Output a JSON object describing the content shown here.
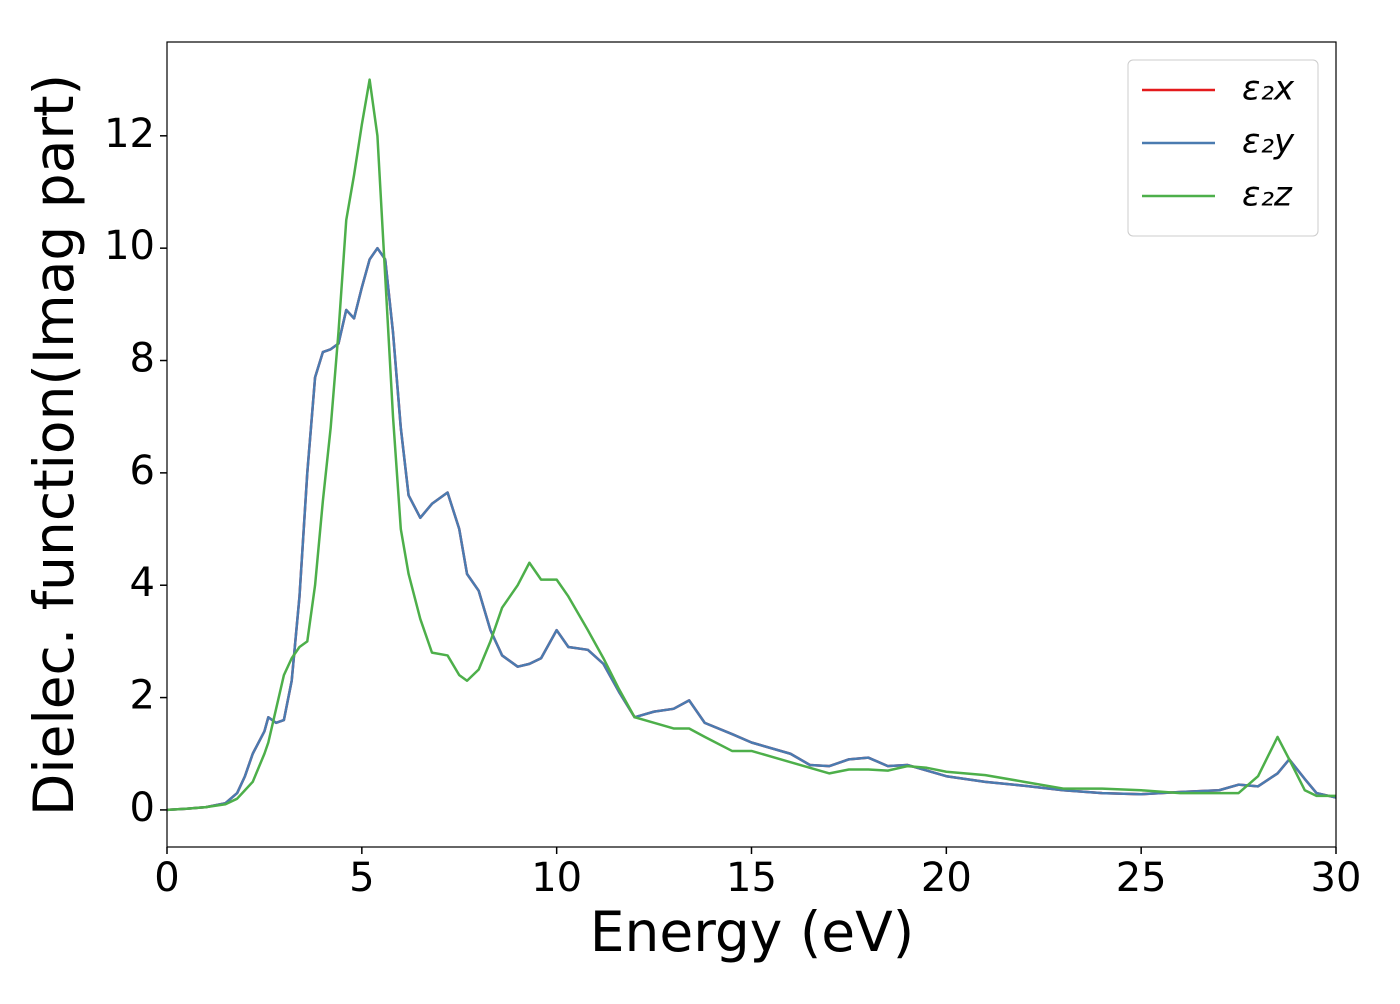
{
  "chart_data": {
    "type": "line",
    "xlabel": "Energy (eV)",
    "ylabel": "Dielec. function(Imag part)",
    "x": [
      0,
      0.5,
      1,
      1.5,
      1.8,
      2,
      2.2,
      2.5,
      2.6,
      2.8,
      3.0,
      3.2,
      3.4,
      3.6,
      3.8,
      4.0,
      4.2,
      4.4,
      4.6,
      4.8,
      5.0,
      5.2,
      5.4,
      5.6,
      5.8,
      6.0,
      6.2,
      6.5,
      6.8,
      7.2,
      7.5,
      7.7,
      8.0,
      8.3,
      8.6,
      9.0,
      9.3,
      9.6,
      10.0,
      10.3,
      10.8,
      11.2,
      11.6,
      12,
      12.5,
      13,
      13.4,
      13.8,
      14.5,
      15,
      16,
      16.5,
      17,
      17.5,
      18,
      18.5,
      19,
      19.5,
      20,
      21,
      22,
      23,
      24,
      25,
      26,
      27,
      27.5,
      28,
      28.5,
      28.8,
      29.2,
      29.5,
      30
    ],
    "series": [
      {
        "name": "ε₂x",
        "color": "#e41a1c",
        "values": [
          0,
          0.02,
          0.05,
          0.12,
          0.3,
          0.6,
          1.0,
          1.4,
          1.65,
          1.55,
          1.6,
          2.3,
          3.8,
          6.0,
          7.7,
          8.15,
          8.2,
          8.3,
          8.9,
          8.75,
          9.3,
          9.8,
          10.0,
          9.8,
          8.5,
          6.8,
          5.6,
          5.2,
          5.45,
          5.65,
          5.0,
          4.2,
          3.9,
          3.2,
          2.75,
          2.55,
          2.6,
          2.7,
          3.2,
          2.9,
          2.85,
          2.6,
          2.1,
          1.65,
          1.75,
          1.8,
          1.95,
          1.55,
          1.35,
          1.2,
          1.0,
          0.8,
          0.78,
          0.9,
          0.93,
          0.78,
          0.8,
          0.7,
          0.6,
          0.5,
          0.43,
          0.35,
          0.3,
          0.28,
          0.32,
          0.35,
          0.45,
          0.42,
          0.65,
          0.9,
          0.55,
          0.3,
          0.22
        ]
      },
      {
        "name": "ε₂y",
        "color": "#4a7bb0",
        "values": [
          0,
          0.02,
          0.05,
          0.12,
          0.3,
          0.6,
          1.0,
          1.4,
          1.65,
          1.55,
          1.6,
          2.3,
          3.8,
          6.0,
          7.7,
          8.15,
          8.2,
          8.3,
          8.9,
          8.75,
          9.3,
          9.8,
          10.0,
          9.8,
          8.5,
          6.8,
          5.6,
          5.2,
          5.45,
          5.65,
          5.0,
          4.2,
          3.9,
          3.2,
          2.75,
          2.55,
          2.6,
          2.7,
          3.2,
          2.9,
          2.85,
          2.6,
          2.1,
          1.65,
          1.75,
          1.8,
          1.95,
          1.55,
          1.35,
          1.2,
          1.0,
          0.8,
          0.78,
          0.9,
          0.93,
          0.78,
          0.8,
          0.7,
          0.6,
          0.5,
          0.43,
          0.35,
          0.3,
          0.28,
          0.32,
          0.35,
          0.45,
          0.42,
          0.65,
          0.9,
          0.55,
          0.3,
          0.22
        ]
      },
      {
        "name": "ε₂z",
        "color": "#4daf4a",
        "values": [
          0,
          0.02,
          0.05,
          0.1,
          0.2,
          0.35,
          0.5,
          1.0,
          1.2,
          1.8,
          2.4,
          2.7,
          2.9,
          3.0,
          4.0,
          5.5,
          6.8,
          8.5,
          10.5,
          11.3,
          12.2,
          13.0,
          12.0,
          9.5,
          7.0,
          5.0,
          4.2,
          3.4,
          2.8,
          2.75,
          2.4,
          2.3,
          2.5,
          3.0,
          3.6,
          4.0,
          4.4,
          4.1,
          4.1,
          3.8,
          3.2,
          2.7,
          2.15,
          1.65,
          1.55,
          1.45,
          1.45,
          1.3,
          1.05,
          1.05,
          0.85,
          0.75,
          0.65,
          0.72,
          0.72,
          0.7,
          0.78,
          0.75,
          0.68,
          0.62,
          0.5,
          0.38,
          0.38,
          0.35,
          0.3,
          0.3,
          0.3,
          0.6,
          1.3,
          0.9,
          0.35,
          0.25,
          0.25
        ]
      }
    ],
    "xlim": [
      0,
      30
    ],
    "xticks": [
      0,
      5,
      10,
      15,
      20,
      25,
      30
    ],
    "ylim": [
      -0.66,
      13.67
    ],
    "yticks": [
      0,
      2,
      4,
      6,
      8,
      10,
      12
    ],
    "grid": false,
    "legend": "upper right"
  }
}
